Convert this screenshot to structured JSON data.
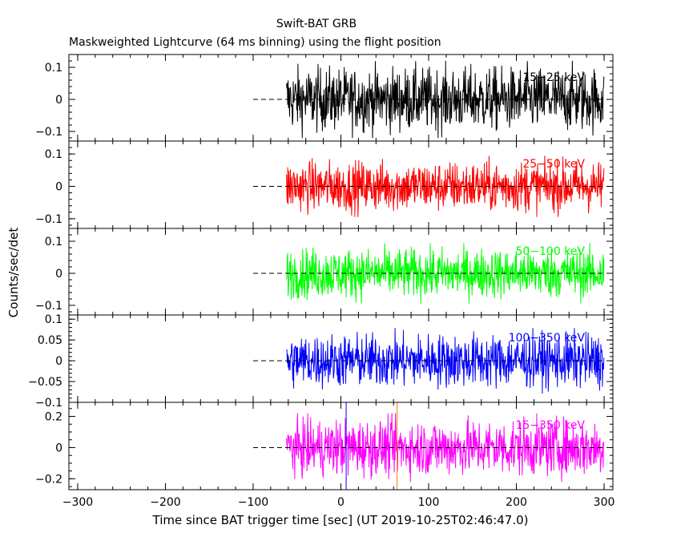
{
  "header": {
    "title": "Swift-BAT GRB",
    "subtitle": "Maskweighted Lightcurve (64 ms binning) using the flight position"
  },
  "chart_data": {
    "type": "line",
    "title": "Swift-BAT GRB",
    "subtitle": "Maskweighted Lightcurve (64 ms binning) using the flight position",
    "xlabel": "Time since BAT trigger time [sec] (UT 2019-10-25T02:46:47.0)",
    "ylabel": "Counts/sec/det",
    "xlim": [
      -310,
      310
    ],
    "x_ticks": [
      -300,
      -200,
      -100,
      0,
      100,
      200,
      300
    ],
    "x_tick_labels": [
      "−300",
      "−200",
      "−100",
      "0",
      "100",
      "200",
      "300"
    ],
    "data_time_range": [
      -62,
      300
    ],
    "zero_line_start": -100,
    "marker_lines": [
      {
        "x": 6,
        "color": "#0000ff"
      },
      {
        "x": 64,
        "color": "#ff7f00"
      }
    ],
    "panels": [
      {
        "band": "15−25 keV",
        "color": "#000000",
        "ylim": [
          -0.13,
          0.14
        ],
        "y_ticks": [
          0.1,
          0,
          -0.1
        ],
        "y_tick_labels": [
          "0.1",
          "0",
          "−0.1"
        ],
        "noise_amplitude": 0.115
      },
      {
        "band": "25−50 keV",
        "color": "#ff0000",
        "ylim": [
          -0.13,
          0.14
        ],
        "y_ticks": [
          0.1,
          0,
          -0.1
        ],
        "y_tick_labels": [
          "0.1",
          "0",
          "−0.1"
        ],
        "noise_amplitude": 0.09
      },
      {
        "band": "50−100 keV",
        "color": "#00ff00",
        "ylim": [
          -0.13,
          0.14
        ],
        "y_ticks": [
          0.1,
          0,
          -0.1
        ],
        "y_tick_labels": [
          "0.1",
          "0",
          "−0.1"
        ],
        "noise_amplitude": 0.09
      },
      {
        "band": "100−350 keV",
        "color": "#0000ff",
        "ylim": [
          -0.1,
          0.11
        ],
        "y_ticks": [
          0.1,
          0.05,
          0,
          -0.05,
          -0.1
        ],
        "y_tick_labels": [
          "0.1",
          "0.05",
          "0",
          "−0.05",
          "−0.1"
        ],
        "noise_amplitude": 0.075
      },
      {
        "band": "15−350 keV",
        "color": "#ff00ff",
        "ylim": [
          -0.27,
          0.29
        ],
        "y_ticks": [
          0.2,
          0,
          -0.2
        ],
        "y_tick_labels": [
          "0.2",
          "0",
          "−0.2"
        ],
        "noise_amplitude": 0.21
      }
    ]
  }
}
